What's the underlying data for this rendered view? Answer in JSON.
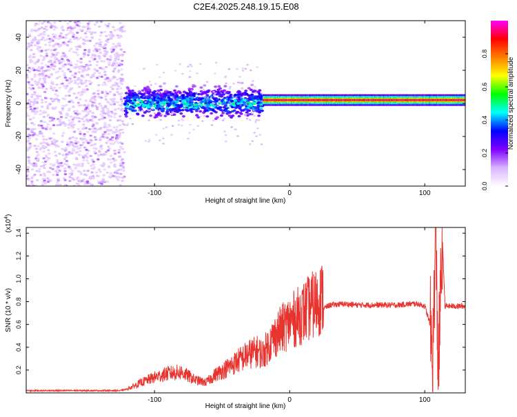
{
  "title": "C2E4.2025.248.19.15.E08",
  "colors": {
    "axis": "#000000",
    "snr_line": "#e8332f",
    "background": "#ffffff"
  },
  "chart_data": [
    {
      "type": "heatmap",
      "name": "spectrogram",
      "xlabel": "Height of straight line (km)",
      "ylabel": "Frequency (Hz)",
      "xlim": [
        -195,
        130
      ],
      "ylim": [
        -50,
        50
      ],
      "x_ticks": [
        -100,
        0,
        100
      ],
      "x_tick_labels": [
        "-100",
        "0",
        "100"
      ],
      "y_ticks": [
        -40,
        -20,
        0,
        20,
        40
      ],
      "y_tick_labels": [
        "-40",
        "-20",
        "0",
        "20",
        "40"
      ],
      "colorbar": {
        "label": "Normalized spectral amplitude",
        "range": [
          0,
          1
        ],
        "ticks": [
          0.0,
          0.2,
          0.4,
          0.6,
          0.8
        ],
        "tick_labels": [
          "0.0",
          "0.2",
          "0.4",
          "0.6",
          "0.8"
        ],
        "colors": [
          "#ffffff",
          "#d9b3ff",
          "#7f00ff",
          "#0000ff",
          "#00ffff",
          "#00ff00",
          "#ffff00",
          "#ff8000",
          "#ff0000",
          "#ff00ff"
        ]
      },
      "regions": [
        {
          "x_range": [
            -195,
            -122
          ],
          "f_range": [
            -50,
            50
          ],
          "amplitude": "0.1-0.2",
          "description": "broadband noise"
        },
        {
          "x_range": [
            -122,
            -20
          ],
          "f_range": [
            -12,
            12
          ],
          "amplitude": "0.2-0.5",
          "description": "noisy band near 0 Hz"
        },
        {
          "x_range": [
            -20,
            130
          ],
          "f_range": [
            -2,
            6
          ],
          "center_hz": 2,
          "amplitude": "0.6-1.0",
          "description": "narrow strong signal line"
        }
      ]
    },
    {
      "type": "line",
      "name": "snr",
      "xlabel": "Height of straight line (km)",
      "ylabel": "SNR (10 * v/v)",
      "y_scale_label": "(x10",
      "y_scale_exp": "4",
      "y_scale_close": ")",
      "xlim": [
        -195,
        130
      ],
      "ylim": [
        0,
        1.45
      ],
      "x_ticks": [
        -100,
        0,
        100
      ],
      "x_tick_labels": [
        "-100",
        "0",
        "100"
      ],
      "y_ticks": [
        0.2,
        0.4,
        0.6,
        0.8,
        1.0,
        1.2,
        1.4
      ],
      "y_tick_labels": [
        "0.2",
        "0.4",
        "0.6",
        "0.8",
        "1.0",
        "1.2",
        "1.4"
      ],
      "series": [
        {
          "name": "SNR",
          "x": [
            -195,
            -160,
            -125,
            -118,
            -110,
            -100,
            -90,
            -80,
            -70,
            -62,
            -55,
            -45,
            -38,
            -30,
            -24,
            -20,
            -15,
            -10,
            -5,
            0,
            5,
            10,
            15,
            20,
            25,
            30,
            40,
            50,
            60,
            70,
            80,
            90,
            95,
            100,
            104,
            106,
            108,
            110,
            113,
            115,
            120,
            130
          ],
          "y": [
            0.02,
            0.02,
            0.02,
            0.04,
            0.08,
            0.12,
            0.15,
            0.16,
            0.1,
            0.08,
            0.14,
            0.2,
            0.25,
            0.3,
            0.32,
            0.3,
            0.38,
            0.45,
            0.5,
            0.55,
            0.58,
            0.62,
            0.66,
            0.7,
            0.74,
            0.77,
            0.78,
            0.77,
            0.77,
            0.77,
            0.77,
            0.78,
            0.78,
            0.76,
            0.6,
            0.3,
            1.45,
            0.2,
            1.35,
            0.76,
            0.76,
            0.76
          ]
        }
      ]
    }
  ]
}
